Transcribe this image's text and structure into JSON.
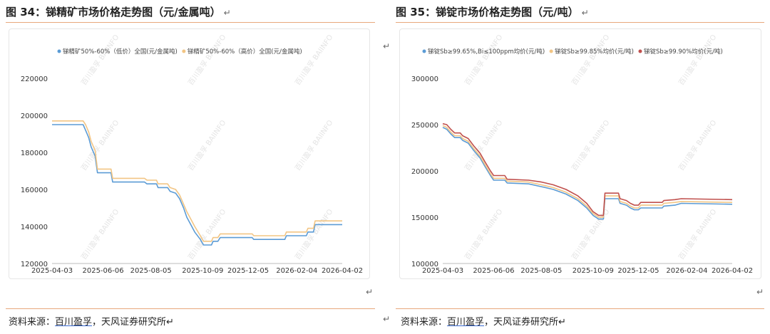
{
  "left": {
    "title": "图 34：锑精矿市场价格走势图（元/金属吨）",
    "source_prefix": "资料来源：",
    "source_link": "百川盈孚",
    "source_suffix": "，天风证券研究所"
  },
  "right": {
    "title": "图 35：锑锭市场价格走势图（元/吨）",
    "source_prefix": "资料来源：",
    "source_link": "百川盈孚",
    "source_suffix": "，天风证券研究所"
  },
  "return_mark": "↵",
  "watermark": "百川盈孚 BAIINFO",
  "chart_data": [
    {
      "type": "line",
      "title": "",
      "xlabel": "",
      "ylabel": "",
      "ylim": [
        120000,
        220000
      ],
      "yticks": [
        "120000",
        "140000",
        "160000",
        "180000",
        "200000",
        "220000"
      ],
      "xticks": [
        "2025-04-03",
        "2025-06-06",
        "2025-08-05",
        "2025-10-09",
        "2025-12-05",
        "2026-02-04",
        "2026-04-02"
      ],
      "grid": false,
      "legend": "top",
      "series": [
        {
          "name": "锑精矿50%-60%（低价）全国(元/金属吨)",
          "color": "#5b9bd5",
          "points": [
            [
              "2025-04-03",
              195000
            ],
            [
              "2025-05-12",
              195000
            ],
            [
              "2025-05-15",
              192000
            ],
            [
              "2025-05-19",
              188000
            ],
            [
              "2025-05-22",
              183000
            ],
            [
              "2025-05-27",
              178000
            ],
            [
              "2025-05-30",
              169000
            ],
            [
              "2025-06-16",
              169000
            ],
            [
              "2025-06-18",
              164000
            ],
            [
              "2025-07-28",
              164000
            ],
            [
              "2025-07-31",
              163000
            ],
            [
              "2025-08-12",
              163000
            ],
            [
              "2025-08-14",
              161000
            ],
            [
              "2025-08-26",
              161000
            ],
            [
              "2025-08-29",
              159000
            ],
            [
              "2025-09-05",
              158000
            ],
            [
              "2025-09-10",
              155000
            ],
            [
              "2025-09-15",
              150000
            ],
            [
              "2025-09-19",
              145000
            ],
            [
              "2025-09-24",
              141000
            ],
            [
              "2025-09-29",
              137000
            ],
            [
              "2025-10-06",
              133000
            ],
            [
              "2025-10-10",
              130000
            ],
            [
              "2025-10-20",
              130000
            ],
            [
              "2025-10-22",
              132000
            ],
            [
              "2025-10-28",
              132000
            ],
            [
              "2025-10-31",
              134000
            ],
            [
              "2025-12-10",
              134000
            ],
            [
              "2025-12-12",
              133000
            ],
            [
              "2026-01-20",
              133000
            ],
            [
              "2026-01-22",
              135000
            ],
            [
              "2026-02-16",
              135000
            ],
            [
              "2026-02-18",
              137000
            ],
            [
              "2026-02-25",
              137000
            ],
            [
              "2026-02-27",
              141000
            ],
            [
              "2026-04-02",
              141000
            ]
          ]
        },
        {
          "name": "锑精矿50%-60%（高价）全国(元/金属吨)",
          "color": "#f2c584",
          "points": [
            [
              "2025-04-03",
              197000
            ],
            [
              "2025-05-12",
              197000
            ],
            [
              "2025-05-15",
              195000
            ],
            [
              "2025-05-19",
              191000
            ],
            [
              "2025-05-22",
              186000
            ],
            [
              "2025-05-27",
              181000
            ],
            [
              "2025-05-30",
              171000
            ],
            [
              "2025-06-16",
              171000
            ],
            [
              "2025-06-18",
              166000
            ],
            [
              "2025-07-28",
              166000
            ],
            [
              "2025-07-31",
              165000
            ],
            [
              "2025-08-12",
              165000
            ],
            [
              "2025-08-14",
              163000
            ],
            [
              "2025-08-26",
              163000
            ],
            [
              "2025-08-29",
              161000
            ],
            [
              "2025-09-05",
              160000
            ],
            [
              "2025-09-10",
              157000
            ],
            [
              "2025-09-15",
              152000
            ],
            [
              "2025-09-19",
              148000
            ],
            [
              "2025-09-24",
              144000
            ],
            [
              "2025-09-29",
              140000
            ],
            [
              "2025-10-06",
              135000
            ],
            [
              "2025-10-10",
              132000
            ],
            [
              "2025-10-20",
              132000
            ],
            [
              "2025-10-22",
              134000
            ],
            [
              "2025-10-28",
              134000
            ],
            [
              "2025-10-31",
              136000
            ],
            [
              "2025-12-10",
              136000
            ],
            [
              "2025-12-12",
              135000
            ],
            [
              "2026-01-20",
              135000
            ],
            [
              "2026-01-22",
              137000
            ],
            [
              "2026-02-16",
              137000
            ],
            [
              "2026-02-18",
              139000
            ],
            [
              "2026-02-25",
              139000
            ],
            [
              "2026-02-27",
              143000
            ],
            [
              "2026-04-02",
              143000
            ]
          ]
        }
      ]
    },
    {
      "type": "line",
      "title": "",
      "xlabel": "",
      "ylabel": "",
      "ylim": [
        100000,
        300000
      ],
      "yticks": [
        "100000",
        "150000",
        "200000",
        "250000",
        "300000"
      ],
      "xticks": [
        "2025-04-03",
        "2025-06-06",
        "2025-08-05",
        "2025-10-09",
        "2025-12-05",
        "2026-02-04",
        "2026-04-02"
      ],
      "grid": false,
      "legend": "top",
      "series": [
        {
          "name": "锑锭Sb≥99.65%,Bi≤100ppm均价(元/吨)",
          "color": "#5b9bd5",
          "points": [
            [
              "2025-04-03",
              247000
            ],
            [
              "2025-04-08",
              245000
            ],
            [
              "2025-04-13",
              240000
            ],
            [
              "2025-04-18",
              236000
            ],
            [
              "2025-04-25",
              236000
            ],
            [
              "2025-04-28",
              233000
            ],
            [
              "2025-05-05",
              230000
            ],
            [
              "2025-05-12",
              222000
            ],
            [
              "2025-05-20",
              214000
            ],
            [
              "2025-05-26",
              205000
            ],
            [
              "2025-06-02",
              195000
            ],
            [
              "2025-06-06",
              190000
            ],
            [
              "2025-06-20",
              190000
            ],
            [
              "2025-06-23",
              187000
            ],
            [
              "2025-07-20",
              186000
            ],
            [
              "2025-08-05",
              183000
            ],
            [
              "2025-08-20",
              180000
            ],
            [
              "2025-09-05",
              175000
            ],
            [
              "2025-09-20",
              168000
            ],
            [
              "2025-10-01",
              160000
            ],
            [
              "2025-10-09",
              152000
            ],
            [
              "2025-10-16",
              148000
            ],
            [
              "2025-10-22",
              148000
            ],
            [
              "2025-10-24",
              170000
            ],
            [
              "2025-11-10",
              170000
            ],
            [
              "2025-11-12",
              165000
            ],
            [
              "2025-11-20",
              163000
            ],
            [
              "2025-11-25",
              160000
            ],
            [
              "2025-11-30",
              158000
            ],
            [
              "2025-12-05",
              158000
            ],
            [
              "2025-12-08",
              160000
            ],
            [
              "2026-01-04",
              160000
            ],
            [
              "2026-01-06",
              162000
            ],
            [
              "2026-01-20",
              163000
            ],
            [
              "2026-01-28",
              165000
            ],
            [
              "2026-04-02",
              164000
            ]
          ]
        },
        {
          "name": "锑锭Sb≥99.85%均价(元/吨)",
          "color": "#f2c584",
          "points": [
            [
              "2025-04-03",
              249000
            ],
            [
              "2025-04-08",
              247000
            ],
            [
              "2025-04-13",
              242000
            ],
            [
              "2025-04-18",
              238000
            ],
            [
              "2025-04-25",
              238000
            ],
            [
              "2025-04-28",
              235000
            ],
            [
              "2025-05-05",
              232000
            ],
            [
              "2025-05-12",
              224000
            ],
            [
              "2025-05-20",
              216000
            ],
            [
              "2025-05-26",
              207000
            ],
            [
              "2025-06-02",
              197000
            ],
            [
              "2025-06-06",
              192000
            ],
            [
              "2025-06-20",
              192000
            ],
            [
              "2025-06-23",
              189000
            ],
            [
              "2025-07-20",
              188000
            ],
            [
              "2025-08-05",
              185000
            ],
            [
              "2025-08-20",
              182000
            ],
            [
              "2025-09-05",
              177000
            ],
            [
              "2025-09-20",
              170000
            ],
            [
              "2025-10-01",
              162000
            ],
            [
              "2025-10-09",
              154000
            ],
            [
              "2025-10-16",
              150000
            ],
            [
              "2025-10-22",
              150000
            ],
            [
              "2025-10-24",
              173000
            ],
            [
              "2025-11-10",
              173000
            ],
            [
              "2025-11-12",
              167000
            ],
            [
              "2025-11-20",
              165000
            ],
            [
              "2025-11-25",
              162000
            ],
            [
              "2025-11-30",
              160000
            ],
            [
              "2025-12-05",
              160000
            ],
            [
              "2025-12-08",
              163000
            ],
            [
              "2026-01-04",
              163000
            ],
            [
              "2026-01-06",
              165000
            ],
            [
              "2026-01-20",
              166000
            ],
            [
              "2026-01-28",
              167000
            ],
            [
              "2026-04-02",
              166000
            ]
          ]
        },
        {
          "name": "锑锭Sb≥99.90%均价(元/吨)",
          "color": "#c0504d",
          "points": [
            [
              "2025-04-03",
              251000
            ],
            [
              "2025-04-08",
              250000
            ],
            [
              "2025-04-13",
              245000
            ],
            [
              "2025-04-18",
              241000
            ],
            [
              "2025-04-25",
              241000
            ],
            [
              "2025-04-28",
              238000
            ],
            [
              "2025-05-05",
              235000
            ],
            [
              "2025-05-12",
              227000
            ],
            [
              "2025-05-20",
              219000
            ],
            [
              "2025-05-26",
              210000
            ],
            [
              "2025-06-02",
              200000
            ],
            [
              "2025-06-06",
              195000
            ],
            [
              "2025-06-20",
              195000
            ],
            [
              "2025-06-23",
              191000
            ],
            [
              "2025-07-20",
              190000
            ],
            [
              "2025-08-05",
              188000
            ],
            [
              "2025-08-20",
              185000
            ],
            [
              "2025-09-05",
              180000
            ],
            [
              "2025-09-20",
              173000
            ],
            [
              "2025-10-01",
              165000
            ],
            [
              "2025-10-09",
              156000
            ],
            [
              "2025-10-16",
              152000
            ],
            [
              "2025-10-22",
              152000
            ],
            [
              "2025-10-24",
              176000
            ],
            [
              "2025-11-10",
              176000
            ],
            [
              "2025-11-12",
              170000
            ],
            [
              "2025-11-20",
              168000
            ],
            [
              "2025-11-25",
              165000
            ],
            [
              "2025-11-30",
              163000
            ],
            [
              "2025-12-05",
              163000
            ],
            [
              "2025-12-08",
              166000
            ],
            [
              "2026-01-04",
              166000
            ],
            [
              "2026-01-06",
              168000
            ],
            [
              "2026-01-20",
              169000
            ],
            [
              "2026-01-28",
              170000
            ],
            [
              "2026-04-02",
              169000
            ]
          ]
        }
      ]
    }
  ]
}
